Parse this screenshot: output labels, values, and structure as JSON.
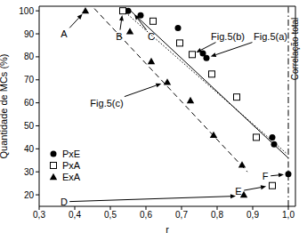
{
  "chart_data": {
    "type": "scatter",
    "x_label": "r",
    "y_label": "Quantidade de MCs (%)",
    "xlim": [
      0.3,
      1.02
    ],
    "ylim": [
      15,
      102
    ],
    "xticks": [
      {
        "value": 0.3,
        "label": "0,3"
      },
      {
        "value": 0.4,
        "label": "0,4"
      },
      {
        "value": 0.5,
        "label": "0,5"
      },
      {
        "value": 0.6,
        "label": "0,6"
      },
      {
        "value": 0.7,
        "label": "0,7"
      },
      {
        "value": 0.8,
        "label": "0,8"
      },
      {
        "value": 0.9,
        "label": "0,9"
      },
      {
        "value": 1.0,
        "label": "1,0"
      }
    ],
    "yticks": [
      20,
      30,
      40,
      50,
      60,
      70,
      80,
      90,
      100
    ],
    "legend": "lower left",
    "series": [
      {
        "type": "line",
        "line_style": "solid",
        "color": "#000000",
        "x": [
          0.55,
          1.0
        ],
        "values": [
          101,
          36
        ]
      },
      {
        "type": "line",
        "line_style": "dotted",
        "color": "#000000",
        "x": [
          0.53,
          0.995
        ],
        "values": [
          101,
          38
        ]
      },
      {
        "type": "line",
        "line_style": "dashed",
        "color": "#000000",
        "x": [
          0.455,
          0.885
        ],
        "values": [
          101,
          30
        ]
      },
      {
        "name": "PxE",
        "type": "scatter",
        "marker": "circle",
        "color": "#000000",
        "x": [
          0.55,
          0.585,
          0.69,
          0.76,
          0.77,
          0.955,
          0.96,
          1.0
        ],
        "values": [
          100,
          98,
          92.5,
          81.5,
          79.5,
          45,
          42,
          29
        ]
      },
      {
        "name": "PxA",
        "type": "scatter",
        "marker": "open_square",
        "color": "#000000",
        "x": [
          0.535,
          0.62,
          0.695,
          0.73,
          0.785,
          0.855,
          0.91,
          0.955
        ],
        "values": [
          100,
          95.5,
          86,
          81,
          72.5,
          62.5,
          45,
          24
        ]
      },
      {
        "name": "ExA",
        "type": "scatter",
        "marker": "triangle",
        "color": "#000000",
        "x": [
          0.43,
          0.555,
          0.615,
          0.66,
          0.725,
          0.79,
          0.87,
          0.875
        ],
        "values": [
          100,
          91,
          78,
          69,
          61,
          46,
          33,
          20
        ]
      }
    ],
    "reference_lines": [
      {
        "x": 1.0,
        "text": "Correlação total",
        "line_style": "dashdot"
      }
    ],
    "annotations": [
      {
        "text": "A",
        "xytext": [
          0.37,
          90
        ],
        "xy": [
          0.43,
          100
        ]
      },
      {
        "text": "B",
        "xytext": [
          0.525,
          89
        ],
        "xy": [
          0.535,
          100
        ]
      },
      {
        "text": "C",
        "xytext": [
          0.615,
          89
        ],
        "xy": [
          0.56,
          100
        ]
      },
      {
        "text": "Fig.5(b)",
        "xytext": [
          0.83,
          89
        ],
        "xy": [
          0.73,
          81
        ]
      },
      {
        "text": "Fig.5(a)",
        "xytext": [
          0.95,
          89
        ],
        "xy": [
          0.77,
          79.5
        ]
      },
      {
        "text": "Fig.5(c)",
        "xytext": [
          0.49,
          60
        ],
        "xy": [
          0.655,
          69
        ]
      },
      {
        "text": "D",
        "xytext": [
          0.37,
          17
        ],
        "xy": [
          0.865,
          19.5
        ]
      },
      {
        "text": "E",
        "xytext": [
          0.86,
          21.5
        ],
        "xy": [
          0.95,
          24
        ]
      },
      {
        "text": "F",
        "xytext": [
          0.935,
          28
        ],
        "xy": [
          1.0,
          29
        ]
      }
    ]
  }
}
